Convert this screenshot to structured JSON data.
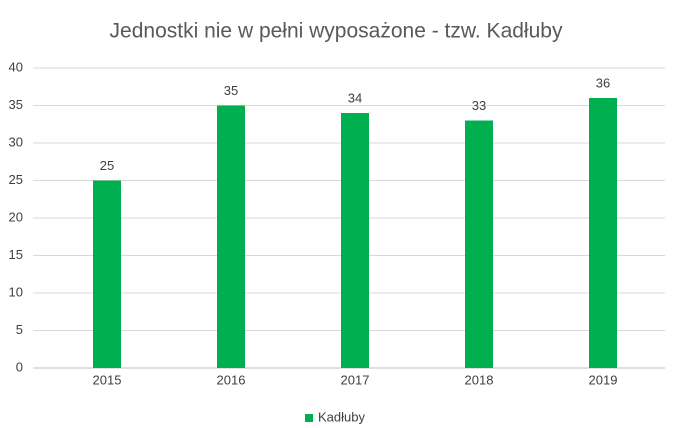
{
  "chart_data": {
    "type": "bar",
    "title": "Jednostki nie w pełni wyposażone - tzw. Kadłuby",
    "categories": [
      "2015",
      "2016",
      "2017",
      "2018",
      "2019"
    ],
    "series": [
      {
        "name": "Kadłuby",
        "color": "#00b050",
        "values": [
          25,
          35,
          34,
          33,
          36
        ]
      }
    ],
    "ylim": [
      0,
      40
    ],
    "yticks": [
      0,
      5,
      10,
      15,
      20,
      25,
      30,
      35,
      40
    ],
    "grid": true,
    "legend": "bottom"
  }
}
